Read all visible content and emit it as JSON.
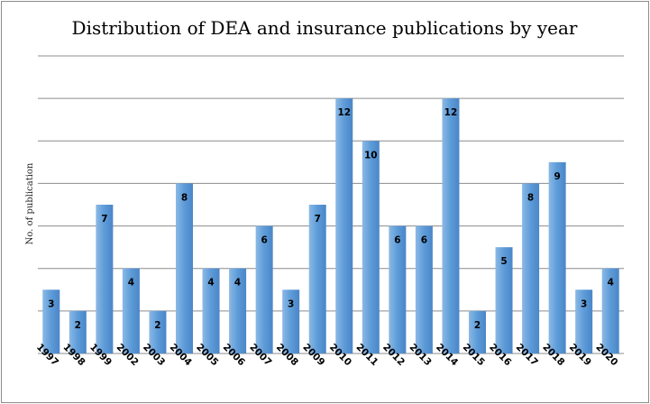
{
  "chart_data": {
    "type": "bar",
    "title": "Distribution of DEA and insurance publications by year",
    "ylabel": "No. of publication",
    "xlabel": "",
    "categories": [
      "1997",
      "1998",
      "1999",
      "2002",
      "2003",
      "2004",
      "2005",
      "2006",
      "2007",
      "2008",
      "2009",
      "2010",
      "2011",
      "2012",
      "2013",
      "2014",
      "2015",
      "2016",
      "2017",
      "2018",
      "2019",
      "2020"
    ],
    "values": [
      3,
      2,
      7,
      4,
      2,
      8,
      4,
      4,
      6,
      3,
      7,
      12,
      10,
      6,
      6,
      12,
      2,
      5,
      8,
      9,
      3,
      4
    ],
    "data_labels": [
      "3",
      "2",
      "7",
      "4",
      "2",
      "8",
      "4",
      "4",
      "6",
      "3",
      "7",
      "12",
      "10",
      "6",
      "6",
      "12",
      "2",
      "5",
      "8",
      "9",
      "3",
      "4"
    ],
    "ylim": [
      0,
      14
    ],
    "ytick_step": 2,
    "ytick_labels_shown": false,
    "grid": true,
    "legend": "none",
    "colors": {
      "bar_light": "#8bb9e6",
      "bar_mid": "#5d9bd8",
      "bar_dark": "#4a86c8",
      "gridline": "#8c8c8c",
      "border": "#8c8c8c"
    }
  }
}
